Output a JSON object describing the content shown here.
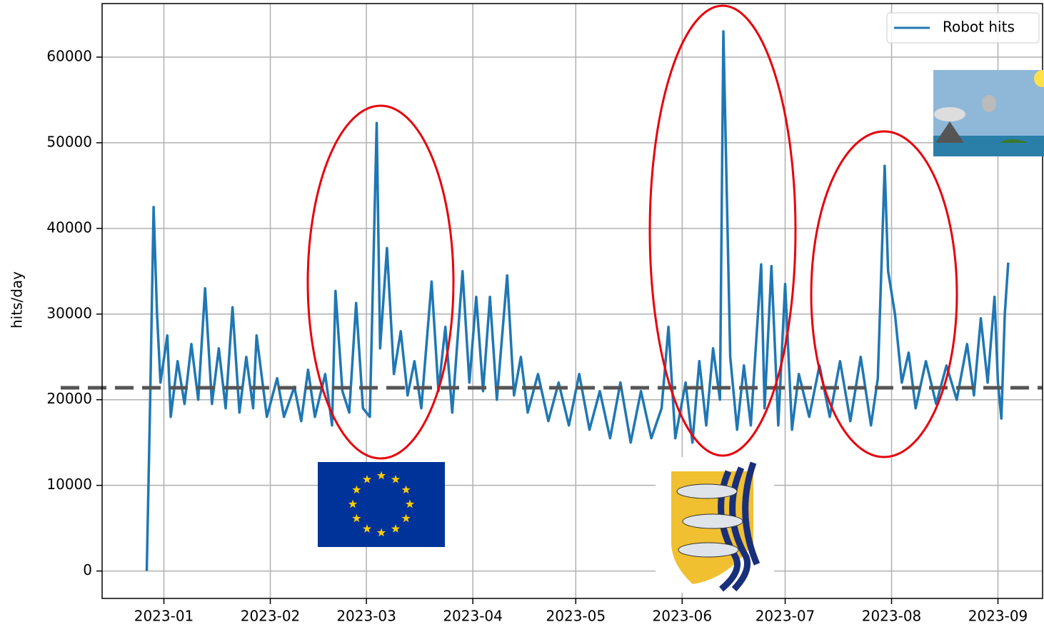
{
  "chart_data": {
    "type": "line",
    "y_label": "hits/day",
    "x": [
      "2022-12-27",
      "2022-12-28",
      "2022-12-29",
      "2022-12-30",
      "2022-12-31",
      "2023-01-02",
      "2023-01-03",
      "2023-01-05",
      "2023-01-07",
      "2023-01-09",
      "2023-01-11",
      "2023-01-13",
      "2023-01-15",
      "2023-01-17",
      "2023-01-19",
      "2023-01-21",
      "2023-01-23",
      "2023-01-25",
      "2023-01-27",
      "2023-01-28",
      "2023-01-31",
      "2023-02-03",
      "2023-02-05",
      "2023-02-08",
      "2023-02-10",
      "2023-02-12",
      "2023-02-14",
      "2023-02-17",
      "2023-02-19",
      "2023-02-20",
      "2023-02-22",
      "2023-02-24",
      "2023-02-26",
      "2023-02-28",
      "2023-03-02",
      "2023-03-04",
      "2023-03-05",
      "2023-03-07",
      "2023-03-09",
      "2023-03-11",
      "2023-03-13",
      "2023-03-15",
      "2023-03-17",
      "2023-03-20",
      "2023-03-22",
      "2023-03-24",
      "2023-03-26",
      "2023-03-29",
      "2023-03-31",
      "2023-04-02",
      "2023-04-04",
      "2023-04-06",
      "2023-04-08",
      "2023-04-11",
      "2023-04-13",
      "2023-04-15",
      "2023-04-17",
      "2023-04-20",
      "2023-04-23",
      "2023-04-26",
      "2023-04-29",
      "2023-05-02",
      "2023-05-05",
      "2023-05-08",
      "2023-05-11",
      "2023-05-14",
      "2023-05-17",
      "2023-05-20",
      "2023-05-23",
      "2023-05-26",
      "2023-05-28",
      "2023-05-30",
      "2023-06-02",
      "2023-06-04",
      "2023-06-06",
      "2023-06-08",
      "2023-06-10",
      "2023-06-12",
      "2023-06-13",
      "2023-06-15",
      "2023-06-17",
      "2023-06-19",
      "2023-06-21",
      "2023-06-24",
      "2023-06-25",
      "2023-06-27",
      "2023-06-29",
      "2023-07-01",
      "2023-07-03",
      "2023-07-05",
      "2023-07-08",
      "2023-07-11",
      "2023-07-14",
      "2023-07-17",
      "2023-07-20",
      "2023-07-23",
      "2023-07-26",
      "2023-07-28",
      "2023-07-30",
      "2023-07-31",
      "2023-08-02",
      "2023-08-04",
      "2023-08-06",
      "2023-08-08",
      "2023-08-11",
      "2023-08-14",
      "2023-08-17",
      "2023-08-20",
      "2023-08-23",
      "2023-08-25",
      "2023-08-27",
      "2023-08-29",
      "2023-08-31",
      "2023-09-01",
      "2023-09-02",
      "2023-09-03",
      "2023-09-04"
    ],
    "series": [
      {
        "name": "Robot hits",
        "color": "#1f77b4",
        "values": [
          0,
          20000,
          42500,
          30000,
          22000,
          27500,
          18000,
          24500,
          19500,
          26500,
          20000,
          33000,
          19500,
          26000,
          19000,
          30800,
          18500,
          25000,
          19000,
          27500,
          18000,
          22500,
          18000,
          21500,
          17500,
          23500,
          18000,
          23000,
          17000,
          32700,
          21000,
          18500,
          31300,
          19000,
          18000,
          52300,
          26000,
          37700,
          23000,
          28000,
          20500,
          24500,
          19000,
          33800,
          21000,
          28500,
          18500,
          35000,
          22000,
          32000,
          21000,
          32000,
          20000,
          34500,
          20500,
          25000,
          18500,
          23000,
          17500,
          22000,
          17000,
          23000,
          16500,
          21000,
          15500,
          22000,
          15000,
          21000,
          15500,
          19000,
          28500,
          15500,
          22000,
          15000,
          24500,
          17000,
          26000,
          20000,
          63000,
          25000,
          16500,
          24000,
          17000,
          35800,
          19000,
          35600,
          17000,
          33500,
          16500,
          23000,
          18000,
          24000,
          18000,
          24500,
          17500,
          25000,
          17000,
          22500,
          47300,
          35000,
          30000,
          22000,
          25500,
          19000,
          24500,
          19500,
          24000,
          20000,
          26500,
          20500,
          29500,
          22000,
          32000,
          22000,
          17800,
          30000,
          36000
        ]
      }
    ],
    "hline": 21400,
    "xlim": [
      "2022-12-14",
      "2023-09-14"
    ],
    "xticks": [
      "2023-01",
      "2023-02",
      "2023-03",
      "2023-04",
      "2023-05",
      "2023-06",
      "2023-07",
      "2023-08",
      "2023-09"
    ],
    "ylim": [
      -3200,
      66250
    ],
    "yticks": [
      0,
      10000,
      20000,
      30000,
      40000,
      50000,
      60000
    ],
    "grid": true,
    "legend": "upper right"
  }
}
